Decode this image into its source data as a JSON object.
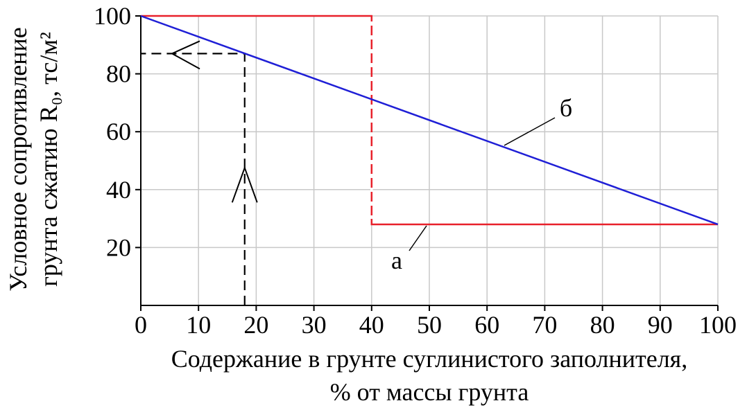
{
  "chart_data": {
    "type": "line",
    "ylabel": [
      "Условное сопротивление",
      "грунта сжатию R₀, тс/м²"
    ],
    "xlabel": [
      "Содержание в грунте суглинистого заполнителя,",
      "% от массы грунта"
    ],
    "series": [
      {
        "name": "а",
        "color": "#e8202a",
        "x": [
          0,
          40,
          40,
          100
        ],
        "values": [
          100,
          100,
          28,
          28
        ]
      },
      {
        "name": "б",
        "color": "#1f1fd6",
        "x": [
          0,
          100
        ],
        "values": [
          100,
          28
        ]
      }
    ],
    "reading": {
      "x": 18,
      "y": 87
    },
    "xlim": [
      0,
      100
    ],
    "xticks": [
      0,
      10,
      20,
      30,
      40,
      50,
      60,
      70,
      80,
      90,
      100
    ],
    "ylim": [
      0,
      100
    ],
    "yticks": [
      20,
      40,
      60,
      80,
      100
    ],
    "grid": true
  }
}
